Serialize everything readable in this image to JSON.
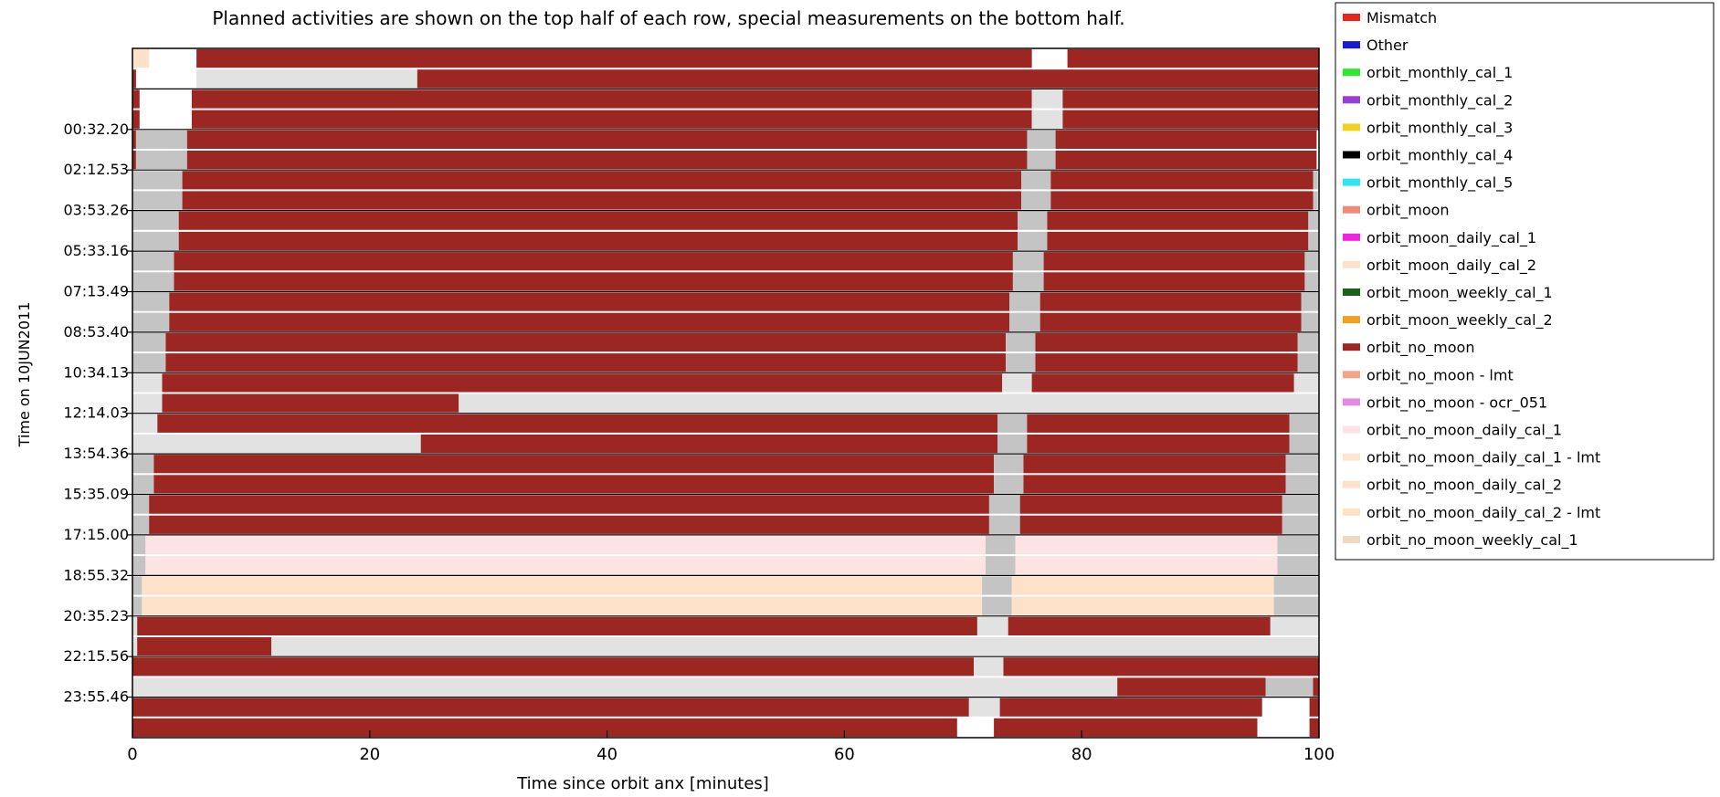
{
  "chart_data": {
    "type": "timeline",
    "title": "Planned activities are shown on the top half of each row, special measurements on the bottom half.",
    "xlabel": "Time since orbit anx [minutes]",
    "ylabel": "Time on 10JUN2011",
    "xlim": [
      0,
      100
    ],
    "xticks": [
      "0",
      "20",
      "40",
      "60",
      "80",
      "100"
    ],
    "ytick_labels": [
      "00:32.20",
      "02:12.53",
      "03:53.26",
      "05:33.16",
      "07:13.49",
      "08:53.40",
      "10:34.13",
      "12:14.03",
      "13:54.36",
      "15:35.09",
      "17:15.00",
      "18:55.32",
      "20:35.23",
      "22:15.56",
      "23:55.46"
    ],
    "legend": [
      {
        "label": "Mismatch",
        "color": "#e8261e"
      },
      {
        "label": "Other",
        "color": "#1a1ad6"
      },
      {
        "label": "orbit_monthly_cal_1",
        "color": "#2de82d"
      },
      {
        "label": "orbit_monthly_cal_2",
        "color": "#9a3fd6"
      },
      {
        "label": "orbit_monthly_cal_3",
        "color": "#f2d11c"
      },
      {
        "label": "orbit_monthly_cal_4",
        "color": "#000000"
      },
      {
        "label": "orbit_monthly_cal_5",
        "color": "#2ee6f0"
      },
      {
        "label": "orbit_moon",
        "color": "#f08a7a"
      },
      {
        "label": "orbit_moon_daily_cal_1",
        "color": "#f020e8"
      },
      {
        "label": "orbit_moon_daily_cal_2",
        "color": "#fbe3c9"
      },
      {
        "label": "orbit_moon_weekly_cal_1",
        "color": "#196419"
      },
      {
        "label": "orbit_moon_weekly_cal_2",
        "color": "#f2a020"
      },
      {
        "label": "orbit_no_moon",
        "color": "#9c2621"
      },
      {
        "label": "orbit_no_moon - lmt",
        "color": "#f4a586"
      },
      {
        "label": "orbit_no_moon - ocr_051",
        "color": "#e48ae6"
      },
      {
        "label": "orbit_no_moon_daily_cal_1",
        "color": "#fde3e1"
      },
      {
        "label": "orbit_no_moon_daily_cal_1 - lmt",
        "color": "#fbe6d4"
      },
      {
        "label": "orbit_no_moon_daily_cal_2",
        "color": "#fde1c8"
      },
      {
        "label": "orbit_no_moon_daily_cal_2 - lmt",
        "color": "#fde2c4"
      },
      {
        "label": "orbit_no_moon_weekly_cal_1",
        "color": "#efd8c0"
      }
    ],
    "colors": {
      "orbit_no_moon": "#9c2621",
      "unplanned_gray": "#c4c4c4",
      "light_gray": "#e2e2e2",
      "orbit_no_moon_daily_cal_1": "#fde3e1",
      "orbit_no_moon_daily_cal_2": "#fde1c8"
    },
    "rows": [
      {
        "top": [
          [
            0,
            1.4,
            "#fde1c8"
          ],
          [
            5.4,
            75.8,
            "#9c2621"
          ],
          [
            78.8,
            100,
            "#9c2621"
          ]
        ],
        "bottom": [
          [
            0,
            0.3,
            "#9c2621"
          ],
          [
            5.4,
            24,
            "#e2e2e2"
          ],
          [
            24,
            100,
            "#9c2621"
          ]
        ]
      },
      {
        "top": [
          [
            0,
            0.6,
            "#9c2621"
          ],
          [
            5,
            75.8,
            "#9c2621"
          ],
          [
            75.8,
            78.4,
            "#e2e2e2"
          ],
          [
            78.4,
            100,
            "#9c2621"
          ]
        ],
        "bottom": [
          [
            0,
            0.6,
            "#9c2621"
          ],
          [
            5,
            75.8,
            "#9c2621"
          ],
          [
            75.8,
            78.4,
            "#e2e2e2"
          ],
          [
            78.4,
            100,
            "#9c2621"
          ]
        ]
      },
      {
        "top": [
          [
            0,
            0.3,
            "#9c2621"
          ],
          [
            0.3,
            4.6,
            "#c4c4c4"
          ],
          [
            4.6,
            75.4,
            "#9c2621"
          ],
          [
            75.4,
            77.8,
            "#c4c4c4"
          ],
          [
            77.8,
            99.8,
            "#9c2621"
          ]
        ],
        "bottom": [
          [
            0,
            0.3,
            "#9c2621"
          ],
          [
            0.3,
            4.6,
            "#c4c4c4"
          ],
          [
            4.6,
            75.4,
            "#9c2621"
          ],
          [
            75.4,
            77.8,
            "#c4c4c4"
          ],
          [
            77.8,
            99.8,
            "#9c2621"
          ]
        ]
      },
      {
        "top": [
          [
            0,
            4.2,
            "#c4c4c4"
          ],
          [
            4.2,
            74.9,
            "#9c2621"
          ],
          [
            74.9,
            77.4,
            "#c4c4c4"
          ],
          [
            77.4,
            99.5,
            "#9c2621"
          ],
          [
            99.5,
            99.9,
            "#c4c4c4"
          ]
        ],
        "bottom": [
          [
            0,
            4.2,
            "#c4c4c4"
          ],
          [
            4.2,
            74.9,
            "#9c2621"
          ],
          [
            74.9,
            77.4,
            "#c4c4c4"
          ],
          [
            77.4,
            99.5,
            "#9c2621"
          ],
          [
            99.5,
            99.9,
            "#c4c4c4"
          ]
        ]
      },
      {
        "top": [
          [
            0,
            3.9,
            "#c4c4c4"
          ],
          [
            3.9,
            74.6,
            "#9c2621"
          ],
          [
            74.6,
            77.1,
            "#c4c4c4"
          ],
          [
            77.1,
            99.1,
            "#9c2621"
          ],
          [
            99.1,
            100,
            "#c4c4c4"
          ]
        ],
        "bottom": [
          [
            0,
            3.9,
            "#c4c4c4"
          ],
          [
            3.9,
            74.6,
            "#9c2621"
          ],
          [
            74.6,
            77.1,
            "#c4c4c4"
          ],
          [
            77.1,
            99.1,
            "#9c2621"
          ],
          [
            99.1,
            100,
            "#c4c4c4"
          ]
        ]
      },
      {
        "top": [
          [
            0,
            3.5,
            "#c4c4c4"
          ],
          [
            3.5,
            74.2,
            "#9c2621"
          ],
          [
            74.2,
            76.8,
            "#c4c4c4"
          ],
          [
            76.8,
            98.8,
            "#9c2621"
          ],
          [
            98.8,
            100,
            "#c4c4c4"
          ]
        ],
        "bottom": [
          [
            0,
            3.5,
            "#c4c4c4"
          ],
          [
            3.5,
            74.2,
            "#9c2621"
          ],
          [
            74.2,
            76.8,
            "#c4c4c4"
          ],
          [
            76.8,
            98.8,
            "#9c2621"
          ],
          [
            98.8,
            100,
            "#c4c4c4"
          ]
        ]
      },
      {
        "top": [
          [
            0,
            3.1,
            "#c4c4c4"
          ],
          [
            3.1,
            73.9,
            "#9c2621"
          ],
          [
            73.9,
            76.5,
            "#c4c4c4"
          ],
          [
            76.5,
            98.5,
            "#9c2621"
          ],
          [
            98.5,
            100,
            "#c4c4c4"
          ]
        ],
        "bottom": [
          [
            0,
            3.1,
            "#c4c4c4"
          ],
          [
            3.1,
            73.9,
            "#9c2621"
          ],
          [
            73.9,
            76.5,
            "#c4c4c4"
          ],
          [
            76.5,
            98.5,
            "#9c2621"
          ],
          [
            98.5,
            100,
            "#c4c4c4"
          ]
        ]
      },
      {
        "top": [
          [
            0,
            2.8,
            "#c4c4c4"
          ],
          [
            2.8,
            73.6,
            "#9c2621"
          ],
          [
            73.6,
            76.1,
            "#c4c4c4"
          ],
          [
            76.1,
            98.2,
            "#9c2621"
          ],
          [
            98.2,
            100,
            "#c4c4c4"
          ]
        ],
        "bottom": [
          [
            0,
            2.8,
            "#c4c4c4"
          ],
          [
            2.8,
            73.6,
            "#9c2621"
          ],
          [
            73.6,
            76.1,
            "#c4c4c4"
          ],
          [
            76.1,
            98.2,
            "#9c2621"
          ],
          [
            98.2,
            100,
            "#c4c4c4"
          ]
        ]
      },
      {
        "top": [
          [
            0,
            2.5,
            "#e2e2e2"
          ],
          [
            2.5,
            73.3,
            "#9c2621"
          ],
          [
            73.3,
            75.8,
            "#e2e2e2"
          ],
          [
            75.8,
            97.9,
            "#9c2621"
          ],
          [
            97.9,
            100,
            "#e2e2e2"
          ]
        ],
        "bottom": [
          [
            0,
            2.5,
            "#e2e2e2"
          ],
          [
            2.5,
            27.5,
            "#9c2621"
          ],
          [
            27.5,
            100,
            "#e2e2e2"
          ]
        ]
      },
      {
        "top": [
          [
            0,
            2.1,
            "#e2e2e2"
          ],
          [
            2.1,
            72.9,
            "#9c2621"
          ],
          [
            72.9,
            75.4,
            "#c4c4c4"
          ],
          [
            75.4,
            97.5,
            "#9c2621"
          ],
          [
            97.5,
            100,
            "#c4c4c4"
          ]
        ],
        "bottom": [
          [
            0,
            24.3,
            "#e2e2e2"
          ],
          [
            24.3,
            72.9,
            "#9c2621"
          ],
          [
            72.9,
            75.4,
            "#c4c4c4"
          ],
          [
            75.4,
            97.5,
            "#9c2621"
          ],
          [
            97.5,
            100,
            "#c4c4c4"
          ]
        ]
      },
      {
        "top": [
          [
            0,
            1.8,
            "#c4c4c4"
          ],
          [
            1.8,
            72.6,
            "#9c2621"
          ],
          [
            72.6,
            75.1,
            "#c4c4c4"
          ],
          [
            75.1,
            97.2,
            "#9c2621"
          ],
          [
            97.2,
            100,
            "#c4c4c4"
          ]
        ],
        "bottom": [
          [
            0,
            1.8,
            "#c4c4c4"
          ],
          [
            1.8,
            72.6,
            "#9c2621"
          ],
          [
            72.6,
            75.1,
            "#c4c4c4"
          ],
          [
            75.1,
            97.2,
            "#9c2621"
          ],
          [
            97.2,
            100,
            "#c4c4c4"
          ]
        ]
      },
      {
        "top": [
          [
            0,
            1.4,
            "#c4c4c4"
          ],
          [
            1.4,
            72.2,
            "#9c2621"
          ],
          [
            72.2,
            74.8,
            "#c4c4c4"
          ],
          [
            74.8,
            96.9,
            "#9c2621"
          ],
          [
            96.9,
            100,
            "#c4c4c4"
          ]
        ],
        "bottom": [
          [
            0,
            1.4,
            "#c4c4c4"
          ],
          [
            1.4,
            72.2,
            "#9c2621"
          ],
          [
            72.2,
            74.8,
            "#c4c4c4"
          ],
          [
            74.8,
            96.9,
            "#9c2621"
          ],
          [
            96.9,
            100,
            "#c4c4c4"
          ]
        ]
      },
      {
        "top": [
          [
            0,
            1.1,
            "#c4c4c4"
          ],
          [
            1.1,
            71.9,
            "#fde3e1"
          ],
          [
            71.9,
            74.4,
            "#c4c4c4"
          ],
          [
            74.4,
            96.5,
            "#fde3e1"
          ],
          [
            96.5,
            100,
            "#c4c4c4"
          ]
        ],
        "bottom": [
          [
            0,
            1.1,
            "#c4c4c4"
          ],
          [
            1.1,
            71.9,
            "#fde3e1"
          ],
          [
            71.9,
            74.4,
            "#c4c4c4"
          ],
          [
            74.4,
            96.5,
            "#fde3e1"
          ],
          [
            96.5,
            100,
            "#c4c4c4"
          ]
        ]
      },
      {
        "top": [
          [
            0,
            0.8,
            "#c4c4c4"
          ],
          [
            0.8,
            71.6,
            "#fde1c8"
          ],
          [
            71.6,
            74.1,
            "#c4c4c4"
          ],
          [
            74.1,
            96.2,
            "#fde1c8"
          ],
          [
            96.2,
            100,
            "#c4c4c4"
          ]
        ],
        "bottom": [
          [
            0,
            0.8,
            "#c4c4c4"
          ],
          [
            0.8,
            71.6,
            "#fde1c8"
          ],
          [
            71.6,
            74.1,
            "#c4c4c4"
          ],
          [
            74.1,
            96.2,
            "#fde1c8"
          ],
          [
            96.2,
            100,
            "#c4c4c4"
          ]
        ]
      },
      {
        "top": [
          [
            0,
            0.4,
            "#e2e2e2"
          ],
          [
            0.4,
            71.2,
            "#9c2621"
          ],
          [
            71.2,
            73.8,
            "#e2e2e2"
          ],
          [
            73.8,
            95.9,
            "#9c2621"
          ],
          [
            95.9,
            100,
            "#e2e2e2"
          ]
        ],
        "bottom": [
          [
            0,
            0.4,
            "#e2e2e2"
          ],
          [
            0.4,
            11.7,
            "#9c2621"
          ],
          [
            11.7,
            100,
            "#e2e2e2"
          ]
        ]
      },
      {
        "top": [
          [
            0,
            70.9,
            "#9c2621"
          ],
          [
            70.9,
            73.4,
            "#e2e2e2"
          ],
          [
            73.4,
            100,
            "#9c2621"
          ]
        ],
        "bottom": [
          [
            0,
            83,
            "#e2e2e2"
          ],
          [
            83,
            95.5,
            "#9c2621"
          ],
          [
            95.5,
            99.5,
            "#c4c4c4"
          ],
          [
            99.5,
            100,
            "#9c2621"
          ]
        ]
      },
      {
        "top": [
          [
            0,
            70.5,
            "#9c2621"
          ],
          [
            70.5,
            73.1,
            "#e2e2e2"
          ],
          [
            73.1,
            95.2,
            "#9c2621"
          ],
          [
            99.2,
            100,
            "#9c2621"
          ]
        ],
        "bottom": [
          [
            0,
            69.5,
            "#9c2621"
          ],
          [
            72.6,
            94.8,
            "#9c2621"
          ],
          [
            99.2,
            100,
            "#9c2621"
          ]
        ]
      }
    ]
  }
}
